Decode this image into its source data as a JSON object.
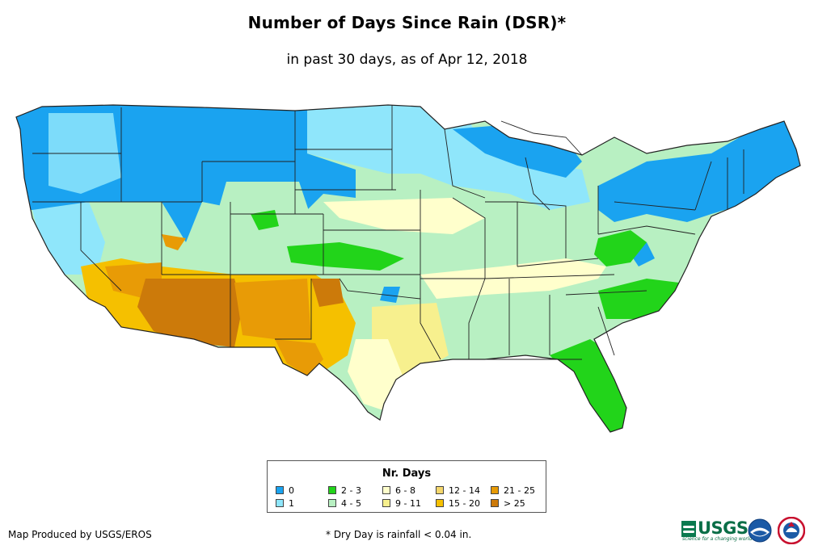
{
  "header": {
    "title": "Number of Days Since Rain (DSR)*",
    "subtitle": "in past 30 days, as of Apr 12, 2018"
  },
  "legend": {
    "title": "Nr. Days",
    "items": [
      {
        "label": "0",
        "color": "#1aa3f0"
      },
      {
        "label": "1",
        "color": "#8fe6fb"
      },
      {
        "label": "2 - 3",
        "color": "#22d41a"
      },
      {
        "label": "4 - 5",
        "color": "#b8f0c2"
      },
      {
        "label": "6 - 8",
        "color": "#ffffcc"
      },
      {
        "label": "9 - 11",
        "color": "#f7f08e"
      },
      {
        "label": "12 - 14",
        "color": "#f5d76c"
      },
      {
        "label": "15 - 20",
        "color": "#f5c000"
      },
      {
        "label": "21 - 25",
        "color": "#e89b06"
      },
      {
        "label": "> 25",
        "color": "#cc7a0a"
      }
    ]
  },
  "footer": {
    "credit": "Map Produced by USGS/EROS",
    "footnote": "* Dry Day is rainfall < 0.04 in."
  },
  "logos": {
    "usgs": "USGS",
    "usgs_tagline": "science for a changing world"
  },
  "icons": {
    "usgs_logo": "usgs-logo-icon",
    "noaa_logo": "noaa-logo-icon",
    "nws_logo": "nws-logo-icon"
  }
}
